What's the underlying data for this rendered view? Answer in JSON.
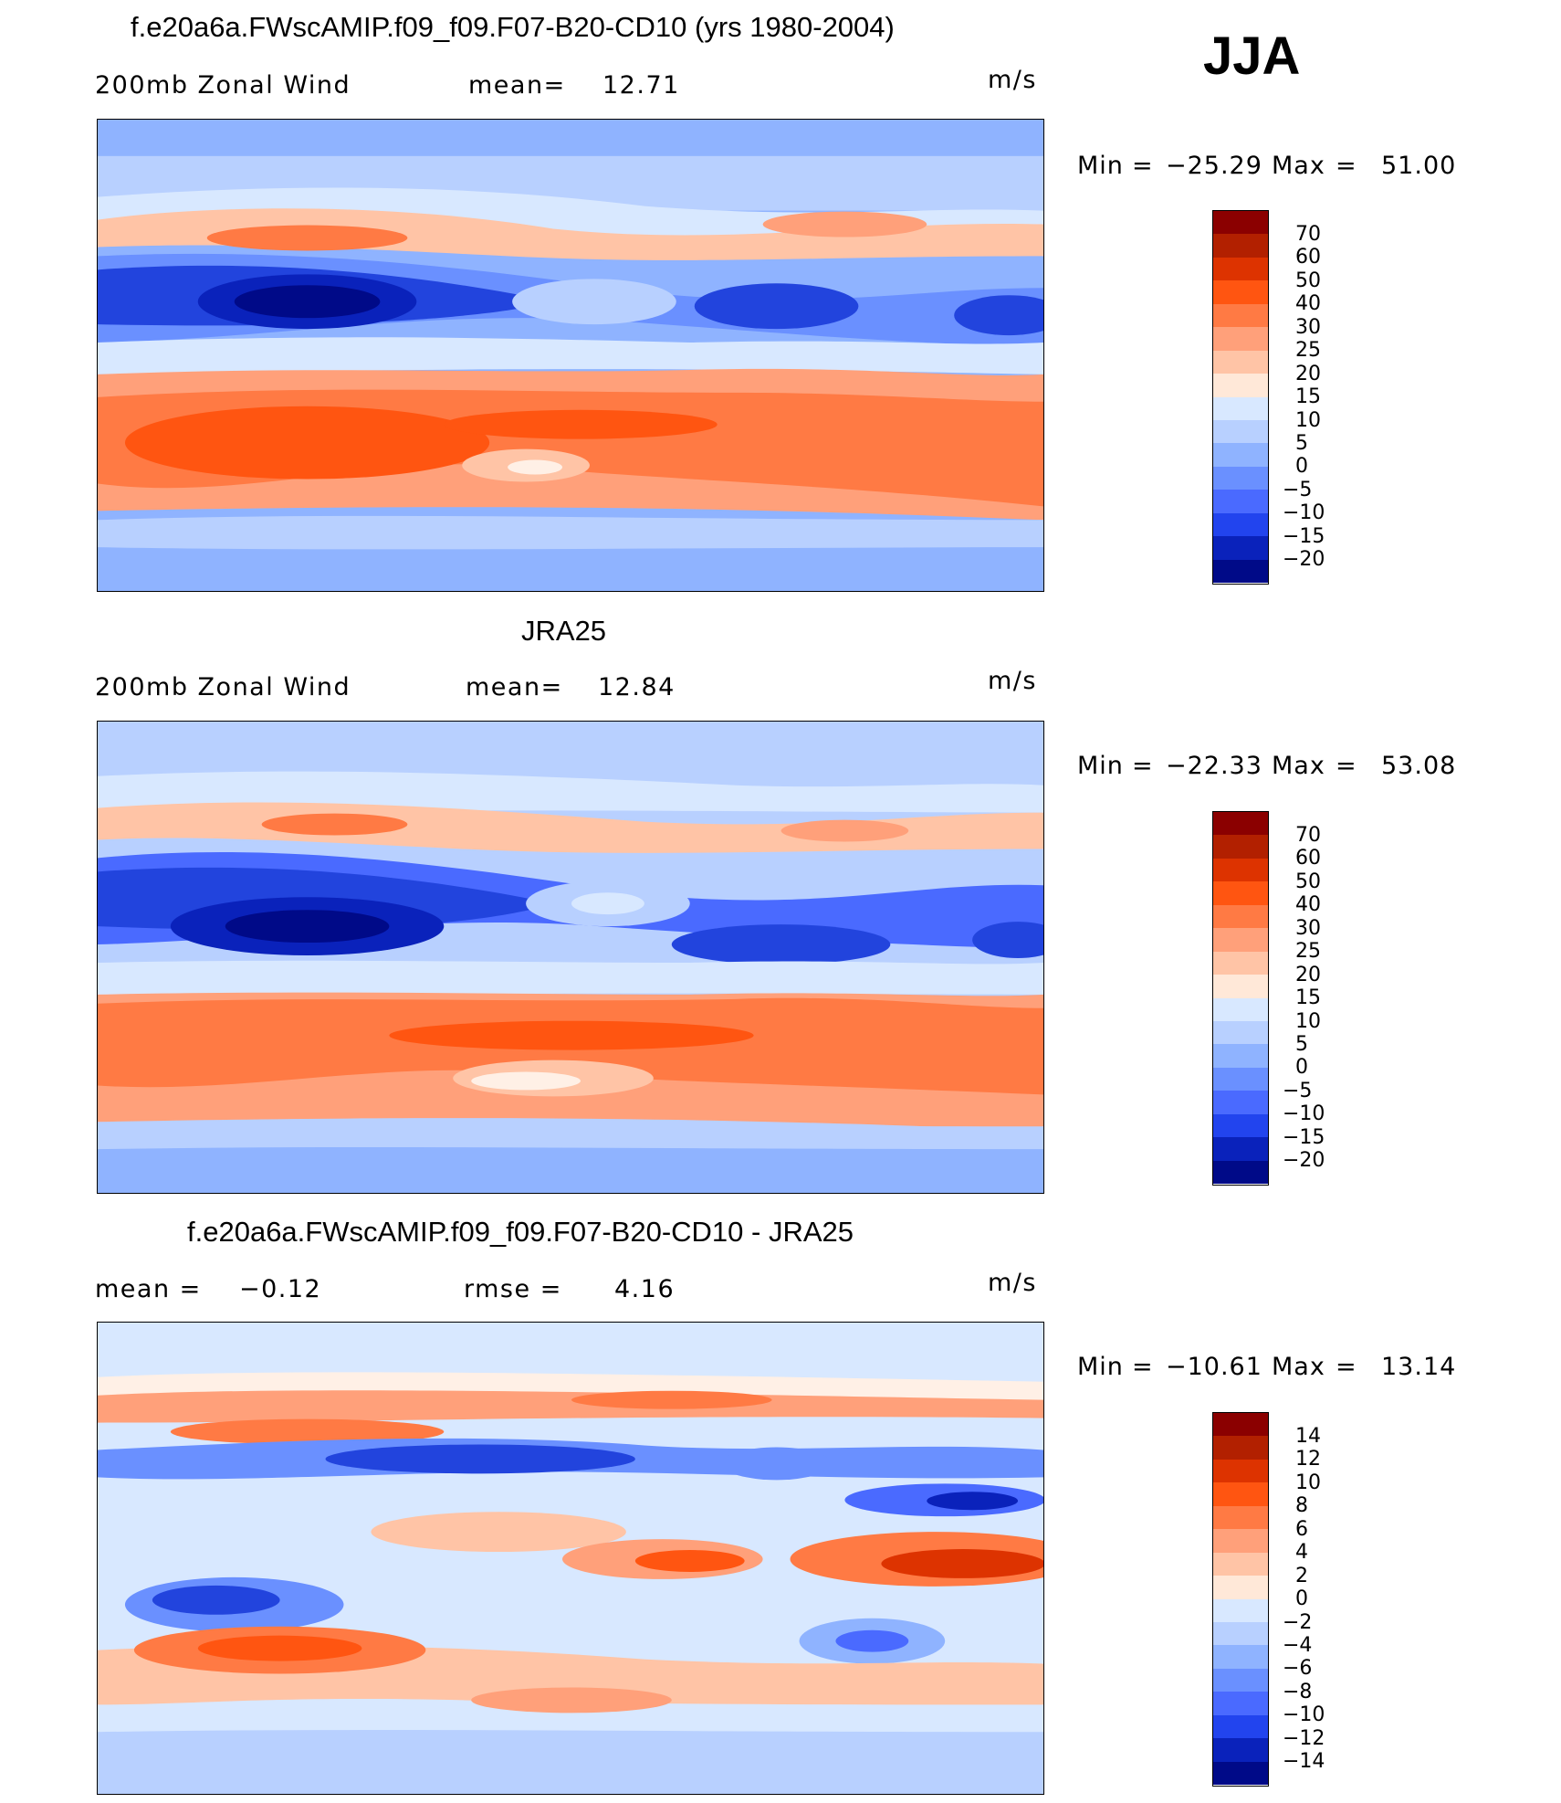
{
  "season": "JJA",
  "panels": [
    {
      "title": "f.e20a6a.FWscAMIP.f09_f09.F07-B20-CD10 (yrs 1980-2004)",
      "left_label": "200mb Zonal Wind",
      "stat_label": "mean=",
      "stat_value": "12.71",
      "units": "m/s",
      "min_label": "Min",
      "min_value": "−25.29",
      "max_label": "Max",
      "max_value": "51.00",
      "colorbar_labels": [
        "70",
        "60",
        "50",
        "40",
        "30",
        "25",
        "20",
        "15",
        "10",
        "5",
        "0",
        "−5",
        "−10",
        "−15",
        "−20"
      ]
    },
    {
      "title": "JRA25",
      "left_label": "200mb Zonal Wind",
      "stat_label": "mean=",
      "stat_value": "12.84",
      "units": "m/s",
      "min_label": "Min",
      "min_value": "−22.33",
      "max_label": "Max",
      "max_value": "53.08",
      "colorbar_labels": [
        "70",
        "60",
        "50",
        "40",
        "30",
        "25",
        "20",
        "15",
        "10",
        "5",
        "0",
        "−5",
        "−10",
        "−15",
        "−20"
      ]
    },
    {
      "title": "f.e20a6a.FWscAMIP.f09_f09.F07-B20-CD10 - JRA25",
      "left_label": "mean =",
      "left_value": "−0.12",
      "stat_label": "rmse =",
      "stat_value": "4.16",
      "units": "m/s",
      "min_label": "Min",
      "min_value": "−10.61",
      "max_label": "Max",
      "max_value": "13.14",
      "colorbar_labels": [
        "14",
        "12",
        "10",
        "8",
        "6",
        "4",
        "2",
        "0",
        "−2",
        "−4",
        "−6",
        "−8",
        "−10",
        "−12",
        "−14"
      ]
    }
  ],
  "colorbar_colors": [
    "#8b0000",
    "#b22000",
    "#dd3300",
    "#ff5511",
    "#ff7a44",
    "#ffa07a",
    "#ffc4a6",
    "#ffe8d8",
    "#d8e8ff",
    "#b8d0ff",
    "#8fb3ff",
    "#6a90ff",
    "#4a6aff",
    "#2244ee",
    "#0a22bb",
    "#000a88"
  ],
  "colors": {
    "strong_red": "#e8451a",
    "mid_red": "#ff8a5c",
    "light_red": "#ffc4a6",
    "pale": "#fff0e6",
    "pale_blue": "#d8e8ff",
    "light_blue": "#a9c4ff",
    "mid_blue": "#6a90ff",
    "strong_blue": "#2244dd",
    "dark_blue": "#0a1e99"
  }
}
